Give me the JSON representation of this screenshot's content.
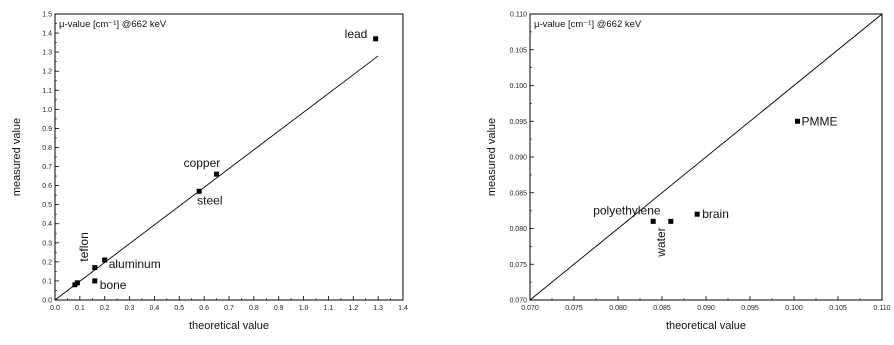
{
  "chart_data": [
    {
      "type": "scatter",
      "annotation": "μ-value [cm⁻¹] @662 keV",
      "xlabel": "theoretical value",
      "ylabel": "measured value",
      "xlim": [
        0.0,
        1.4
      ],
      "ylim": [
        0.0,
        1.5
      ],
      "xticks": [
        "0.0",
        "0.1",
        "0.2",
        "0.3",
        "0.4",
        "0.5",
        "0.6",
        "0.7",
        "0.8",
        "0.9",
        "1.0",
        "1.1",
        "1.2",
        "1.3",
        "1.4"
      ],
      "yticks": [
        "0.0",
        "0.1",
        "0.2",
        "0.3",
        "0.4",
        "0.5",
        "0.6",
        "0.7",
        "0.8",
        "0.9",
        "1.0",
        "1.1",
        "1.2",
        "1.3",
        "1.4",
        "1.5"
      ],
      "grid": false,
      "reference_line": {
        "x": [
          0.0,
          1.3
        ],
        "y": [
          0.0,
          1.28
        ]
      },
      "points": [
        {
          "label": "lead",
          "x": 1.29,
          "y": 1.37
        },
        {
          "label": "copper",
          "x": 0.65,
          "y": 0.66
        },
        {
          "label": "steel",
          "x": 0.58,
          "y": 0.57
        },
        {
          "label": "aluminum",
          "x": 0.2,
          "y": 0.21
        },
        {
          "label": "teflon",
          "x": 0.16,
          "y": 0.17
        },
        {
          "label": "bone",
          "x": 0.16,
          "y": 0.1
        },
        {
          "label": "",
          "x": 0.09,
          "y": 0.09
        },
        {
          "label": "",
          "x": 0.08,
          "y": 0.08
        }
      ]
    },
    {
      "type": "scatter",
      "annotation": "μ-value [cm⁻¹] @662 keV",
      "xlabel": "theoretical value",
      "ylabel": "measured value",
      "xlim": [
        0.07,
        0.11
      ],
      "ylim": [
        0.07,
        0.11
      ],
      "xticks": [
        "0.070",
        "0.075",
        "0.080",
        "0.085",
        "0.090",
        "0.095",
        "0.100",
        "0.105",
        "0.110"
      ],
      "yticks": [
        "0.070",
        "0.075",
        "0.080",
        "0.085",
        "0.090",
        "0.095",
        "0.100",
        "0.105",
        "0.110"
      ],
      "grid": false,
      "reference_line": {
        "x": [
          0.07,
          0.11
        ],
        "y": [
          0.07,
          0.11
        ]
      },
      "points": [
        {
          "label": "PMME",
          "x": 0.1004,
          "y": 0.095
        },
        {
          "label": "polyethylene",
          "x": 0.084,
          "y": 0.081
        },
        {
          "label": "water",
          "x": 0.086,
          "y": 0.081
        },
        {
          "label": "brain",
          "x": 0.089,
          "y": 0.082
        }
      ]
    }
  ]
}
